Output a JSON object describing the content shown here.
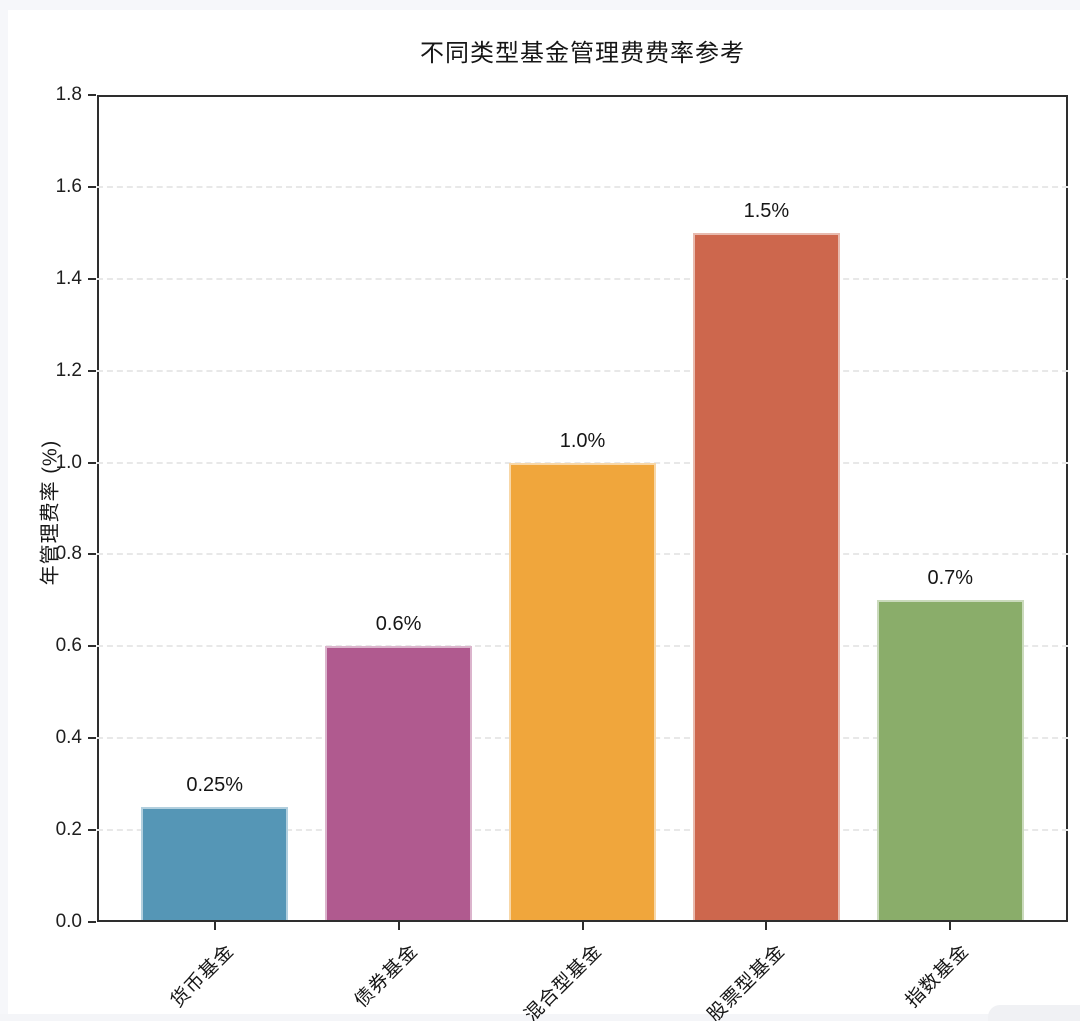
{
  "chart_data": {
    "type": "bar",
    "title": "不同类型基金管理费费率参考",
    "xlabel": "",
    "ylabel": "年管理费率 (%)",
    "categories": [
      "货币基金",
      "债券基金",
      "混合型基金",
      "股票型基金",
      "指数基金"
    ],
    "values": [
      0.25,
      0.6,
      1.0,
      1.5,
      0.7
    ],
    "value_labels": [
      "0.25%",
      "0.6%",
      "1.0%",
      "1.5%",
      "0.7%"
    ],
    "bar_colors": [
      "#5596B6",
      "#B05A8F",
      "#F0A63C",
      "#CD674D",
      "#8AAD6A"
    ],
    "ylim": [
      0.0,
      1.8
    ],
    "yticks": [
      0.0,
      0.2,
      0.4,
      0.6,
      0.8,
      1.0,
      1.2,
      1.4,
      1.6,
      1.8
    ],
    "ytick_labels": [
      "0.0",
      "0.2",
      "0.4",
      "0.6",
      "0.8",
      "1.0",
      "1.2",
      "1.4",
      "1.6",
      "1.8"
    ],
    "grid": "horizontal-dashed",
    "legend": "none",
    "axis_color": "#2e2e2e",
    "grid_color": "#e8e8e8"
  }
}
